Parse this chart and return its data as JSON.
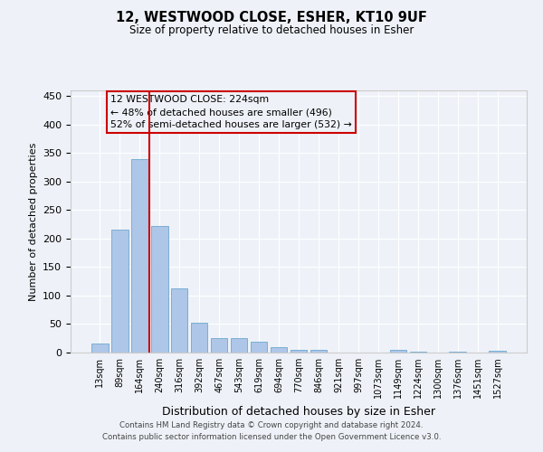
{
  "title": "12, WESTWOOD CLOSE, ESHER, KT10 9UF",
  "subtitle": "Size of property relative to detached houses in Esher",
  "xlabel": "Distribution of detached houses by size in Esher",
  "ylabel": "Number of detached properties",
  "categories": [
    "13sqm",
    "89sqm",
    "164sqm",
    "240sqm",
    "316sqm",
    "392sqm",
    "467sqm",
    "543sqm",
    "619sqm",
    "694sqm",
    "770sqm",
    "846sqm",
    "921sqm",
    "997sqm",
    "1073sqm",
    "1149sqm",
    "1224sqm",
    "1300sqm",
    "1376sqm",
    "1451sqm",
    "1527sqm"
  ],
  "values": [
    16,
    215,
    340,
    222,
    112,
    52,
    26,
    25,
    19,
    9,
    5,
    4,
    0,
    0,
    0,
    4,
    1,
    0,
    1,
    0,
    3
  ],
  "bar_color": "#aec6e8",
  "bar_edge_color": "#7aafd4",
  "vline_index": 2.5,
  "vline_color": "#cc0000",
  "annotation_line1": "12 WESTWOOD CLOSE: 224sqm",
  "annotation_line2": "← 48% of detached houses are smaller (496)",
  "annotation_line3": "52% of semi-detached houses are larger (532) →",
  "annotation_box_color": "#cc0000",
  "ylim": [
    0,
    460
  ],
  "yticks": [
    0,
    50,
    100,
    150,
    200,
    250,
    300,
    350,
    400,
    450
  ],
  "footer": "Contains HM Land Registry data © Crown copyright and database right 2024.\nContains public sector information licensed under the Open Government Licence v3.0.",
  "bg_color": "#eef2f8",
  "grid_color": "#ffffff",
  "figsize": [
    6.0,
    5.0
  ],
  "dpi": 100
}
